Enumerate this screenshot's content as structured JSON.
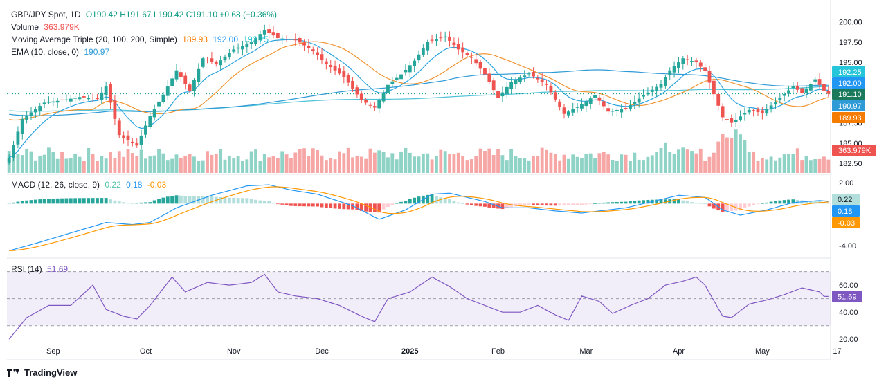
{
  "header": {
    "symbol": "GBP/JPY Spot, 1D",
    "ohlc": "O190.42 H191.67 L190.42 C191.10 +0.68 (+0.36%)",
    "volume_label": "Volume",
    "volume_value": "363.979K",
    "ma_label": "Moving Average Triple (20, 100, 200, Simple)",
    "ma_values": [
      "189.93",
      "192.00",
      "192.25"
    ],
    "ema_label": "EMA (10, close, 0)",
    "ema_value": "190.97",
    "macd_label": "MACD (12, 26, close, 9)",
    "macd_values": [
      "0.22",
      "0.18",
      "-0.03"
    ],
    "rsi_label": "RSI (14)",
    "rsi_value": "51.69"
  },
  "colors": {
    "up": "#26a69a",
    "down": "#ef5350",
    "vol_up": "#8fd3c6",
    "vol_down": "#f5a6a5",
    "sma20": "#f0922e",
    "sma100": "#2f9bd6",
    "sma200": "#4fc3d8",
    "ema": "#29a3e0",
    "rsi": "#7e57c2",
    "macd": "#2196f3",
    "signal": "#ff9800"
  },
  "chart_data": {
    "type": "candlestick",
    "price_axis": {
      "ticks": [
        "200.00",
        "197.50",
        "195.00",
        "187.50",
        "185.00",
        "182.50"
      ],
      "range": [
        181.3,
        201.0
      ]
    },
    "price_labels": [
      {
        "text": "192.25",
        "color": "#26c6da"
      },
      {
        "text": "192.00",
        "color": "#2196f3"
      },
      {
        "text": "191.10",
        "color": "#1b7a5c"
      },
      {
        "text": "190.97",
        "color": "#2f9bd6"
      },
      {
        "text": "189.93",
        "color": "#f57c00"
      },
      {
        "text": "363.979K",
        "color": "#ef5350"
      }
    ],
    "x_ticks": [
      "Sep",
      "Oct",
      "Nov",
      "Dec",
      "2025",
      "Feb",
      "Mar",
      "Apr",
      "May",
      "17"
    ],
    "close_anchors": [
      [
        0,
        183.2
      ],
      [
        3,
        188.0
      ],
      [
        8,
        190.0
      ],
      [
        12,
        190.3
      ],
      [
        16,
        190.7
      ],
      [
        20,
        190.5
      ],
      [
        22,
        192.0
      ],
      [
        25,
        186.0
      ],
      [
        29,
        184.7
      ],
      [
        32,
        188.4
      ],
      [
        35,
        191.0
      ],
      [
        38,
        194.0
      ],
      [
        41,
        191.5
      ],
      [
        44,
        195.5
      ],
      [
        47,
        194.8
      ],
      [
        51,
        196.6
      ],
      [
        55,
        197.5
      ],
      [
        58,
        199.0
      ],
      [
        61,
        198.0
      ],
      [
        65,
        197.8
      ],
      [
        69,
        196.4
      ],
      [
        72,
        194.8
      ],
      [
        76,
        193.2
      ],
      [
        80,
        190.3
      ],
      [
        83,
        189.4
      ],
      [
        86,
        192.2
      ],
      [
        89,
        193.5
      ],
      [
        92,
        195.2
      ],
      [
        95,
        197.5
      ],
      [
        99,
        198.2
      ],
      [
        102,
        196.6
      ],
      [
        105,
        195.6
      ],
      [
        108,
        193.5
      ],
      [
        111,
        190.6
      ],
      [
        114,
        192.6
      ],
      [
        118,
        193.6
      ],
      [
        122,
        192.2
      ],
      [
        126,
        188.6
      ],
      [
        130,
        189.8
      ],
      [
        133,
        190.9
      ],
      [
        136,
        188.9
      ],
      [
        140,
        189.3
      ],
      [
        144,
        190.9
      ],
      [
        148,
        192.3
      ],
      [
        150,
        194.0
      ],
      [
        153,
        195.5
      ],
      [
        156,
        195.0
      ],
      [
        158,
        193.9
      ],
      [
        162,
        188.2
      ],
      [
        164,
        187.5
      ],
      [
        168,
        189.1
      ],
      [
        171,
        188.7
      ],
      [
        175,
        190.6
      ],
      [
        178,
        192.0
      ],
      [
        180,
        191.2
      ],
      [
        183,
        192.9
      ],
      [
        185,
        191.5
      ],
      [
        186,
        191.1
      ]
    ],
    "volume_range": [
      0,
      6.0
    ],
    "macd_axis": {
      "ticks": [
        "2.00",
        "-4.00"
      ],
      "range": [
        -5.0,
        2.6
      ]
    },
    "macd_anchors": [
      [
        0,
        -4.5
      ],
      [
        6,
        -3.8
      ],
      [
        14,
        -2.8
      ],
      [
        22,
        -1.8
      ],
      [
        28,
        -2.0
      ],
      [
        32,
        -1.8
      ],
      [
        38,
        -0.4
      ],
      [
        46,
        0.8
      ],
      [
        54,
        1.7
      ],
      [
        59,
        1.8
      ],
      [
        64,
        1.3
      ],
      [
        70,
        0.9
      ],
      [
        78,
        -0.2
      ],
      [
        84,
        -1.5
      ],
      [
        90,
        -0.6
      ],
      [
        96,
        0.9
      ],
      [
        100,
        1.0
      ],
      [
        104,
        0.6
      ],
      [
        108,
        0.2
      ],
      [
        112,
        -0.4
      ],
      [
        118,
        -0.4
      ],
      [
        124,
        -0.7
      ],
      [
        130,
        -0.9
      ],
      [
        136,
        -0.6
      ],
      [
        140,
        -0.4
      ],
      [
        146,
        0.2
      ],
      [
        152,
        0.8
      ],
      [
        158,
        0.6
      ],
      [
        162,
        -0.6
      ],
      [
        166,
        -1.1
      ],
      [
        172,
        -0.6
      ],
      [
        178,
        0.1
      ],
      [
        184,
        0.3
      ],
      [
        186,
        0.22
      ]
    ],
    "rsi_axis": {
      "ticks": [
        "60.00",
        "40.00",
        "20.00"
      ],
      "range": [
        15,
        78
      ],
      "levels": [
        70,
        50,
        30
      ]
    },
    "rsi_anchors": [
      [
        0,
        20
      ],
      [
        4,
        36
      ],
      [
        9,
        45
      ],
      [
        14,
        45
      ],
      [
        19,
        60
      ],
      [
        22,
        42
      ],
      [
        26,
        37
      ],
      [
        29,
        35
      ],
      [
        32,
        45
      ],
      [
        37,
        66
      ],
      [
        40,
        55
      ],
      [
        45,
        62
      ],
      [
        50,
        60
      ],
      [
        55,
        62
      ],
      [
        58,
        68
      ],
      [
        61,
        55
      ],
      [
        65,
        52
      ],
      [
        70,
        50
      ],
      [
        75,
        45
      ],
      [
        80,
        37
      ],
      [
        83,
        33
      ],
      [
        86,
        50
      ],
      [
        91,
        55
      ],
      [
        96,
        66
      ],
      [
        100,
        59
      ],
      [
        104,
        50
      ],
      [
        108,
        45
      ],
      [
        112,
        40
      ],
      [
        116,
        40
      ],
      [
        120,
        45
      ],
      [
        124,
        38
      ],
      [
        127,
        34
      ],
      [
        130,
        52
      ],
      [
        134,
        48
      ],
      [
        137,
        39
      ],
      [
        141,
        45
      ],
      [
        145,
        50
      ],
      [
        149,
        60
      ],
      [
        153,
        63
      ],
      [
        156,
        66
      ],
      [
        158,
        60
      ],
      [
        162,
        37
      ],
      [
        164,
        36
      ],
      [
        168,
        46
      ],
      [
        172,
        49
      ],
      [
        176,
        53
      ],
      [
        180,
        58
      ],
      [
        184,
        55
      ],
      [
        185,
        51.7
      ],
      [
        186,
        51.69
      ]
    ]
  },
  "footer": {
    "brand": "TradingView"
  }
}
